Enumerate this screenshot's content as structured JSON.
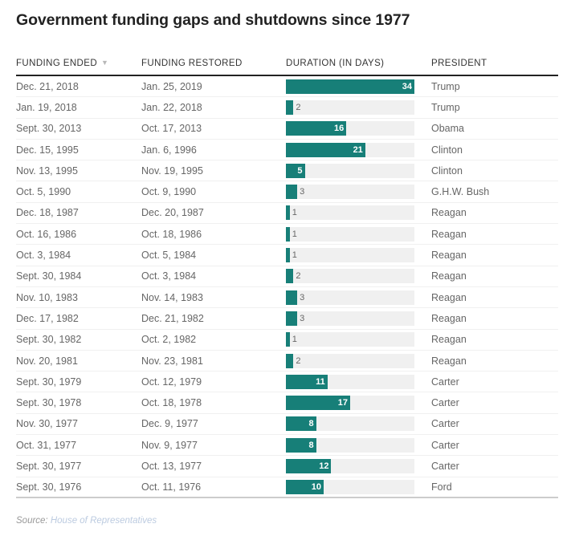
{
  "chart_data": {
    "type": "table",
    "title": "Government funding gaps and shutdowns since 1977",
    "columns": [
      "FUNDING ENDED",
      "FUNDING RESTORED",
      "DURATION (IN DAYS)",
      "PRESIDENT"
    ],
    "sort": {
      "column": "FUNDING ENDED",
      "direction": "descending"
    },
    "bar_color": "#177f78",
    "track_color": "#f0f0f0",
    "duration_max": 34,
    "rows": [
      {
        "ended": "Dec. 21, 2018",
        "restored": "Jan. 25, 2019",
        "days": 34,
        "president": "Trump"
      },
      {
        "ended": "Jan. 19, 2018",
        "restored": "Jan. 22, 2018",
        "days": 2,
        "president": "Trump"
      },
      {
        "ended": "Sept. 30, 2013",
        "restored": "Oct. 17, 2013",
        "days": 16,
        "president": "Obama"
      },
      {
        "ended": "Dec. 15, 1995",
        "restored": "Jan. 6, 1996",
        "days": 21,
        "president": "Clinton"
      },
      {
        "ended": "Nov. 13, 1995",
        "restored": "Nov. 19, 1995",
        "days": 5,
        "president": "Clinton"
      },
      {
        "ended": "Oct. 5, 1990",
        "restored": "Oct. 9, 1990",
        "days": 3,
        "president": "G.H.W. Bush"
      },
      {
        "ended": "Dec. 18, 1987",
        "restored": "Dec. 20, 1987",
        "days": 1,
        "president": "Reagan"
      },
      {
        "ended": "Oct. 16, 1986",
        "restored": "Oct. 18, 1986",
        "days": 1,
        "president": "Reagan"
      },
      {
        "ended": "Oct. 3, 1984",
        "restored": "Oct. 5, 1984",
        "days": 1,
        "president": "Reagan"
      },
      {
        "ended": "Sept. 30, 1984",
        "restored": "Oct. 3, 1984",
        "days": 2,
        "president": "Reagan"
      },
      {
        "ended": "Nov. 10, 1983",
        "restored": "Nov. 14, 1983",
        "days": 3,
        "president": "Reagan"
      },
      {
        "ended": "Dec. 17, 1982",
        "restored": "Dec. 21, 1982",
        "days": 3,
        "president": "Reagan"
      },
      {
        "ended": "Sept. 30, 1982",
        "restored": "Oct. 2, 1982",
        "days": 1,
        "president": "Reagan"
      },
      {
        "ended": "Nov. 20, 1981",
        "restored": "Nov. 23, 1981",
        "days": 2,
        "president": "Reagan"
      },
      {
        "ended": "Sept. 30, 1979",
        "restored": "Oct. 12, 1979",
        "days": 11,
        "president": "Carter"
      },
      {
        "ended": "Sept. 30, 1978",
        "restored": "Oct. 18, 1978",
        "days": 17,
        "president": "Carter"
      },
      {
        "ended": "Nov. 30, 1977",
        "restored": "Dec. 9, 1977",
        "days": 8,
        "president": "Carter"
      },
      {
        "ended": "Oct. 31, 1977",
        "restored": "Nov. 9, 1977",
        "days": 8,
        "president": "Carter"
      },
      {
        "ended": "Sept. 30, 1977",
        "restored": "Oct. 13, 1977",
        "days": 12,
        "president": "Carter"
      },
      {
        "ended": "Sept. 30, 1976",
        "restored": "Oct. 11, 1976",
        "days": 10,
        "president": "Ford"
      }
    ]
  },
  "header": {
    "title": "Government funding gaps and shutdowns since 1977",
    "col_ended": "FUNDING ENDED",
    "col_restored": "FUNDING RESTORED",
    "col_duration": "DURATION (IN DAYS)",
    "col_president": "PRESIDENT",
    "sort_icon": "▼"
  },
  "footer": {
    "source_label": "Source:",
    "source_name": "House of Representatives"
  }
}
